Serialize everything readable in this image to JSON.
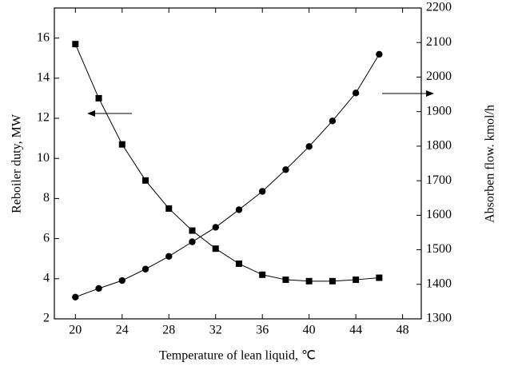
{
  "chart_data": {
    "type": "line",
    "xlabel": "Temperature of lean liquid, ℃",
    "ylabel": "Reboiler duty, MW",
    "y2label": "Absorben flow. kmol/h",
    "x": [
      20,
      22,
      24,
      26,
      28,
      30,
      32,
      34,
      36,
      38,
      40,
      42,
      44,
      46
    ],
    "series": [
      {
        "color": "#000000",
        "marker": "square",
        "values": [
          15.7,
          13.0,
          10.7,
          8.9,
          7.5,
          6.4,
          5.5,
          4.75,
          4.2,
          3.95,
          3.88,
          3.88,
          3.95,
          4.05
        ]
      },
      {
        "color": "#000000",
        "marker": "circle",
        "axis": "y2",
        "values": [
          1363,
          1388,
          1411,
          1444,
          1481,
          1523,
          1565,
          1616,
          1669,
          1732,
          1799,
          1873,
          1954,
          2066
        ]
      }
    ],
    "xlim": [
      18.2,
      49.6
    ],
    "xticks": [
      20,
      24,
      28,
      32,
      36,
      40,
      44,
      48
    ],
    "ylim": [
      2,
      17.5
    ],
    "yticks": [
      2,
      4,
      6,
      8,
      10,
      12,
      14,
      16
    ],
    "y2lim": [
      1300,
      2200
    ],
    "y2ticks": [
      1300,
      1400,
      1500,
      1600,
      1700,
      1800,
      1900,
      2000,
      2100,
      2200
    ]
  }
}
